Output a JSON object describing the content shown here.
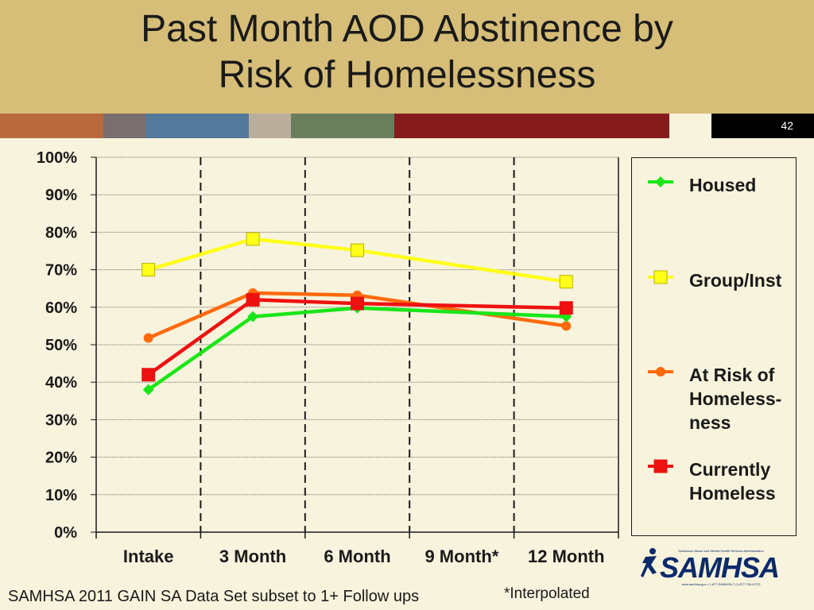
{
  "slide": {
    "title_line1": "Past Month AOD Abstinence by",
    "title_line2": "Risk of Homelessness",
    "slide_number": "42",
    "footer_left": "SAMHSA 2011 GAIN SA Data Set subset to 1+ Follow ups",
    "footer_right": "*Interpolated",
    "logo": {
      "name": "SAMHSA",
      "tagline": "Substance Abuse and Mental Health Services Administration",
      "contact": "www.samhsa.gov • 1-877-SAMHSA-7 (1-877-726-4727)"
    },
    "colors": {
      "header_bg": "#d6bd78",
      "slide_bg": "#f8f3dc",
      "stripes": [
        "#b86a3c",
        "#7b6e6e",
        "#54799a",
        "#b9ae9c",
        "#6b7e5c",
        "#861b1e",
        "#f8f3dc",
        "#000000"
      ]
    }
  },
  "chart_data": {
    "type": "line",
    "categories": [
      "Intake",
      "3 Month",
      "6 Month",
      "9 Month*",
      "12 Month"
    ],
    "ylim": [
      0,
      100
    ],
    "y_ticks": [
      "0%",
      "10%",
      "20%",
      "30%",
      "40%",
      "50%",
      "60%",
      "70%",
      "80%",
      "90%",
      "100%"
    ],
    "y_unit": "%",
    "grid": "horizontal dotted; vertical dashed separators",
    "legend_position": "right",
    "series": [
      {
        "name": "Housed",
        "color": "#19e619",
        "marker": "diamond",
        "values": [
          38,
          57.5,
          59.8,
          null,
          57.5
        ]
      },
      {
        "name": "Group/Inst",
        "color": "#ffff19",
        "marker": "square",
        "values": [
          70,
          78.2,
          75.2,
          null,
          66.8
        ]
      },
      {
        "name": "At Risk of Homeless-ness",
        "color": "#ff6a0d",
        "marker": "circle",
        "values": [
          51.8,
          63.8,
          63.2,
          null,
          55
        ]
      },
      {
        "name": "Currently Homeless",
        "color": "#ee1111",
        "marker": "square",
        "values": [
          42,
          62,
          61,
          null,
          59.8
        ]
      }
    ],
    "legend_labels": [
      [
        "Housed"
      ],
      [
        "Group/Inst"
      ],
      [
        "At Risk of",
        "Homeless-",
        "ness"
      ],
      [
        "Currently",
        "Homeless"
      ]
    ]
  }
}
